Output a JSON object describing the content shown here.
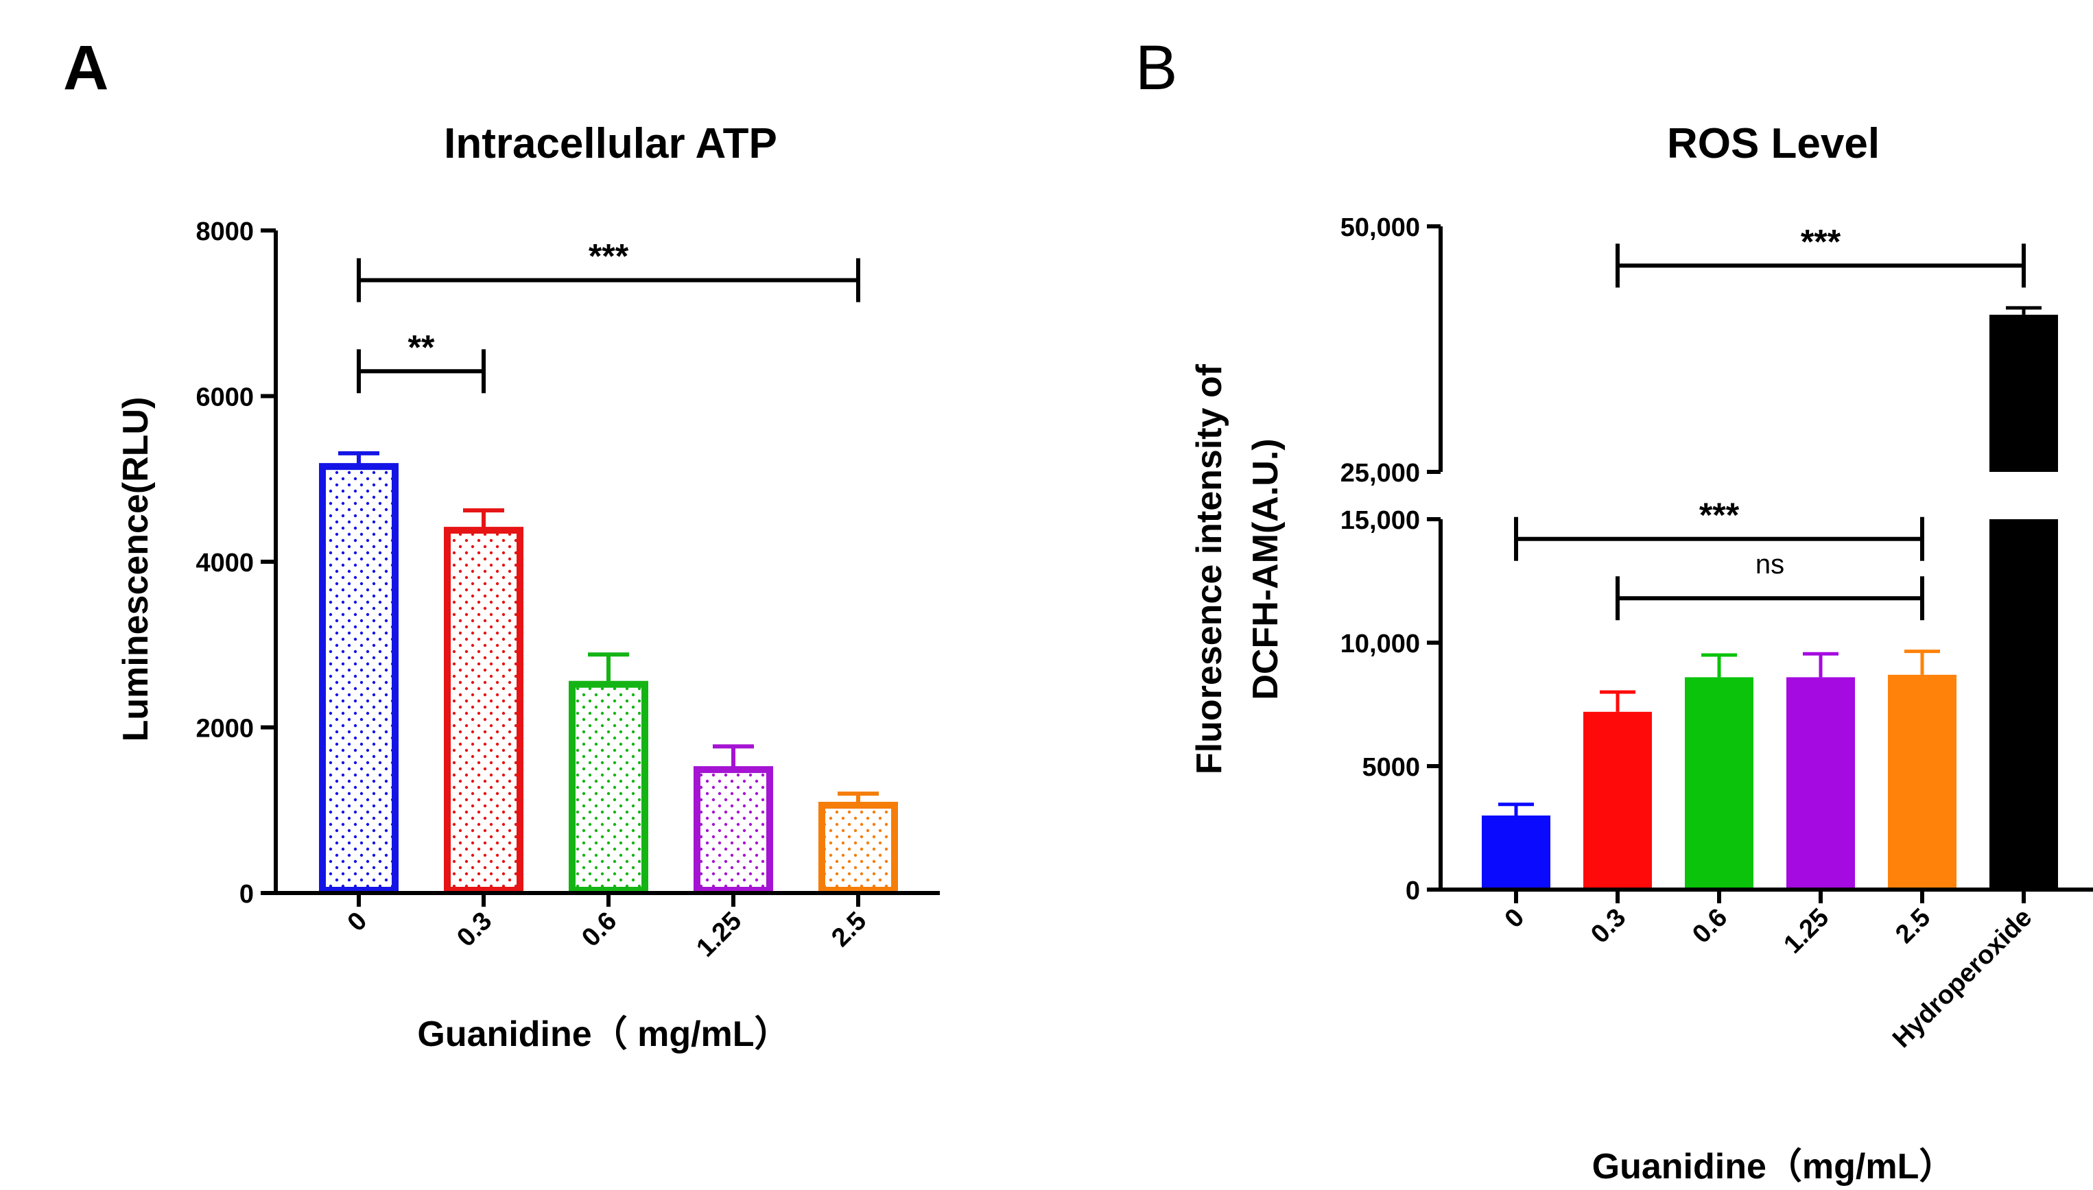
{
  "chart_data": [
    {
      "panel": "A",
      "type": "bar",
      "title": "Intracellular ATP",
      "xlabel": "Guanidine（ mg/mL）",
      "ylabel": "Luminescence(RLU)",
      "ylim": [
        0,
        8000
      ],
      "yticks": [
        {
          "value": 0,
          "label": "0"
        },
        {
          "value": 2000,
          "label": "2000"
        },
        {
          "value": 4000,
          "label": "4000"
        },
        {
          "value": 6000,
          "label": "6000"
        },
        {
          "value": 8000,
          "label": "8000"
        }
      ],
      "categories": [
        "0",
        "0.3",
        "0.6",
        "1.25",
        "2.5"
      ],
      "values": [
        5150,
        4380,
        2520,
        1490,
        1060
      ],
      "errors": [
        160,
        240,
        360,
        280,
        140
      ],
      "colors": [
        "#1414e6",
        "#e61414",
        "#14b414",
        "#a514d2",
        "#f57d0a"
      ],
      "style": "dotted-outline",
      "significance": [
        {
          "from": 0,
          "to": 1,
          "label": "**",
          "y": 6300
        },
        {
          "from": 0,
          "to": 4,
          "label": "***",
          "y": 7400
        }
      ]
    },
    {
      "panel": "B",
      "type": "bar",
      "title": "ROS Level",
      "xlabel": "Guanidine（mg/mL）",
      "ylabel_lines": [
        "Fluoresence intensity of",
        "DCFH-AM(A.U.)"
      ],
      "axis_break": {
        "lower": [
          0,
          15000
        ],
        "upper": [
          25000,
          50000
        ]
      },
      "yticks": [
        {
          "value": 0,
          "label": "0"
        },
        {
          "value": 5000,
          "label": "5000"
        },
        {
          "value": 10000,
          "label": "10,000"
        },
        {
          "value": 15000,
          "label": "15,000"
        },
        {
          "value": 25000,
          "label": "25,000"
        },
        {
          "value": 50000,
          "label": "50,000"
        }
      ],
      "categories": [
        "0",
        "0.3",
        "0.6",
        "1.25",
        "2.5",
        "Hydroperoxide"
      ],
      "values": [
        3000,
        7200,
        8600,
        8600,
        8700,
        41000
      ],
      "errors": [
        450,
        800,
        900,
        950,
        950,
        700
      ],
      "colors": [
        "#0a0aff",
        "#ff0a0a",
        "#0ac30a",
        "#a50ae1",
        "#ff820a",
        "#000000"
      ],
      "style": "solid",
      "significance": [
        {
          "from": 1,
          "to": 5,
          "label": "***",
          "y": 46000
        },
        {
          "from": 0,
          "to": 4,
          "label": "***",
          "y": 14200
        },
        {
          "from": 1,
          "to": 4,
          "label": "ns",
          "y": 11800
        }
      ]
    }
  ]
}
